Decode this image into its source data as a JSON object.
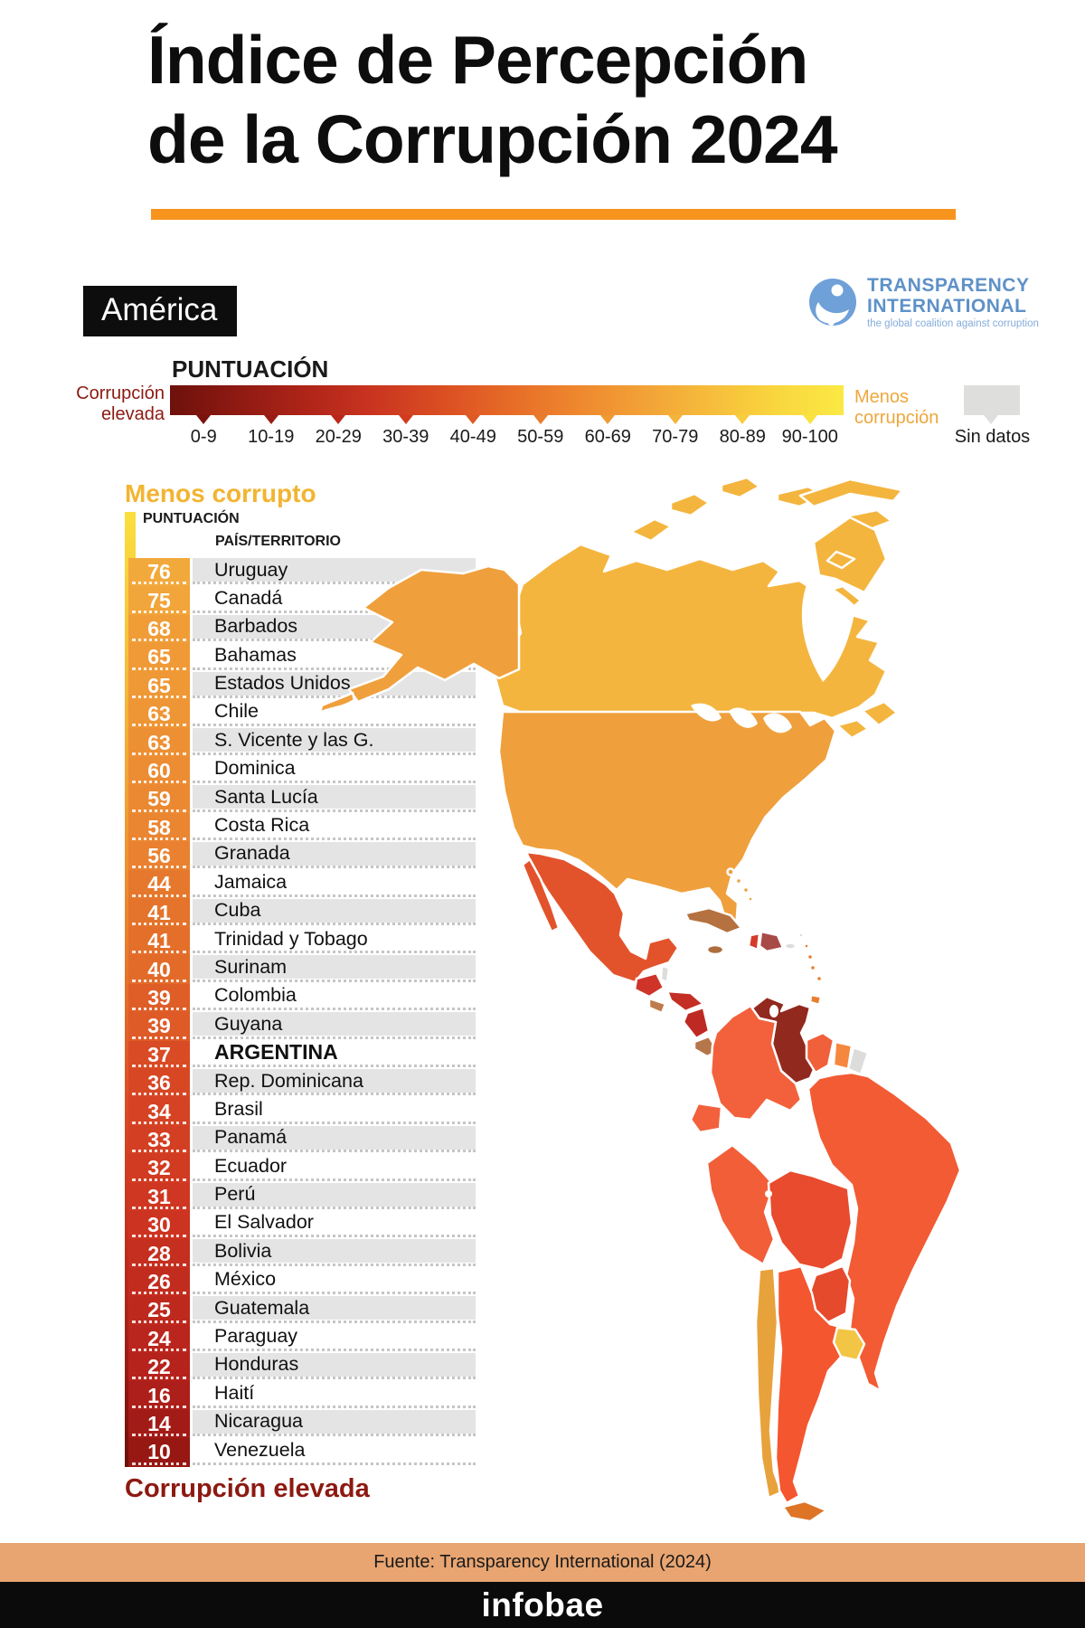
{
  "title": {
    "line1": "Índice de Percepción",
    "line2": "de la Corrupción 2024"
  },
  "region_label": "América",
  "logo": {
    "name_line1": "TRANSPARENCY",
    "name_line2": "INTERNATIONAL",
    "tagline": "the global coalition against corruption",
    "color": "#5E91C8"
  },
  "legend": {
    "title": "PUNTUACIÓN",
    "left_label_line1": "Corrupción",
    "left_label_line2": "elevada",
    "right_label_line1": "Menos",
    "right_label_line2": "corrupción",
    "no_data_label": "Sin datos",
    "buckets": [
      "0-9",
      "10-19",
      "20-29",
      "30-39",
      "40-49",
      "50-59",
      "60-69",
      "70-79",
      "80-89",
      "90-100"
    ],
    "tick_colors": [
      "#7A130E",
      "#9A1B13",
      "#BA2719",
      "#D23B1E",
      "#DE5A23",
      "#E87C2B",
      "#EF9A33",
      "#F3B43A",
      "#F7CC3D",
      "#FAE23F"
    ]
  },
  "ranking": {
    "heading": "Menos corrupto",
    "col_score": "PUNTUACIÓN",
    "col_country": "PAÍS/TERRITORIO",
    "bottom_label": "Corrupción elevada",
    "rows": [
      {
        "score": "76",
        "country": "Uruguay",
        "color": "#F2A93C"
      },
      {
        "score": "75",
        "country": "Canadá",
        "color": "#F1A53A"
      },
      {
        "score": "68",
        "country": "Barbados",
        "color": "#F09D38"
      },
      {
        "score": "65",
        "country": "Bahamas",
        "color": "#F09A37"
      },
      {
        "score": "65",
        "country": "Estados Unidos",
        "color": "#EF9836"
      },
      {
        "score": "63",
        "country": "Chile",
        "color": "#EE9535"
      },
      {
        "score": "63",
        "country": "S. Vicente y las G.",
        "color": "#ED9034"
      },
      {
        "score": "60",
        "country": "Dominica",
        "color": "#EC8C33"
      },
      {
        "score": "59",
        "country": "Santa Lucía",
        "color": "#EB8932"
      },
      {
        "score": "58",
        "country": "Costa Rica",
        "color": "#EA8531"
      },
      {
        "score": "56",
        "country": "Granada",
        "color": "#E98130"
      },
      {
        "score": "44",
        "country": "Jamaica",
        "color": "#E5782D"
      },
      {
        "score": "41",
        "country": "Cuba",
        "color": "#E4732C"
      },
      {
        "score": "41",
        "country": "Trinidad y Tobago",
        "color": "#E36F2B"
      },
      {
        "score": "40",
        "country": "Surinam",
        "color": "#E26B2A"
      },
      {
        "score": "39",
        "country": "Colombia",
        "color": "#DF5E28"
      },
      {
        "score": "39",
        "country": "Guyana",
        "color": "#DE5A27"
      },
      {
        "score": "37",
        "country": "ARGENTINA",
        "color": "#D94B25",
        "bold": true
      },
      {
        "score": "36",
        "country": "Rep. Dominicana",
        "color": "#D74724"
      },
      {
        "score": "34",
        "country": "Brasil",
        "color": "#D54324"
      },
      {
        "score": "33",
        "country": "Panamá",
        "color": "#D33F23"
      },
      {
        "score": "32",
        "country": "Ecuador",
        "color": "#D13B22"
      },
      {
        "score": "31",
        "country": "Perú",
        "color": "#CF3722"
      },
      {
        "score": "30",
        "country": "El Salvador",
        "color": "#CD3321"
      },
      {
        "score": "28",
        "country": "Bolivia",
        "color": "#C52F20"
      },
      {
        "score": "26",
        "country": "México",
        "color": "#C22C1F"
      },
      {
        "score": "25",
        "country": "Guatemala",
        "color": "#BE291E"
      },
      {
        "score": "24",
        "country": "Paraguay",
        "color": "#BA261D"
      },
      {
        "score": "22",
        "country": "Honduras",
        "color": "#B6231C"
      },
      {
        "score": "16",
        "country": "Haití",
        "color": "#AC1F1A"
      },
      {
        "score": "14",
        "country": "Nicaragua",
        "color": "#A31B17"
      },
      {
        "score": "10",
        "country": "Venezuela",
        "color": "#971713"
      }
    ]
  },
  "map": {
    "colors": {
      "canada": "#F4B53E",
      "usa": "#EFA03C",
      "mexico": "#E2532C",
      "guatemala": "#CE3528",
      "belize": "#DCDCDA",
      "honduras": "#C52E24",
      "el_salvador": "#BE7B4B",
      "nicaragua": "#BE2A23",
      "costa_rica": "#B5764A",
      "panama": "#BA7448",
      "cuba": "#B5713F",
      "jamaica": "#AD6D3D",
      "haiti": "#D53A2A",
      "dominican_republic": "#A84B48",
      "no_data_gray": "#DCDCDA",
      "bahamas": "#EFA03C",
      "lesser_antilles": "#E87E2F",
      "trinidad_tobago": "#E87E2F",
      "venezuela": "#92291E",
      "colombia": "#F2613B",
      "ecuador": "#F2613B",
      "peru": "#F15E38",
      "brazil": "#F25B33",
      "bolivia": "#E84B2D",
      "paraguay": "#E64A2C",
      "chile": "#E8A23C",
      "argentina": "#F4562F",
      "uruguay": "#F2C544",
      "guyana": "#F0603A",
      "suriname": "#F6873E",
      "french_guiana": "#DCDCDA",
      "tierra_del_fuego": "#DD7426"
    }
  },
  "footer": {
    "source": "Fuente: Transparency International (2024)",
    "brand": "infobae",
    "band_color": "#E8A571"
  },
  "chart_data": {
    "type": "table",
    "title": "Índice de Percepción de la Corrupción 2024 – América",
    "categories": [
      "Uruguay",
      "Canadá",
      "Barbados",
      "Bahamas",
      "Estados Unidos",
      "Chile",
      "S. Vicente y las G.",
      "Dominica",
      "Santa Lucía",
      "Costa Rica",
      "Granada",
      "Jamaica",
      "Cuba",
      "Trinidad y Tobago",
      "Surinam",
      "Colombia",
      "Guyana",
      "ARGENTINA",
      "Rep. Dominicana",
      "Brasil",
      "Panamá",
      "Ecuador",
      "Perú",
      "El Salvador",
      "Bolivia",
      "México",
      "Guatemala",
      "Paraguay",
      "Honduras",
      "Haití",
      "Nicaragua",
      "Venezuela"
    ],
    "values": [
      76,
      75,
      68,
      65,
      65,
      63,
      63,
      60,
      59,
      58,
      56,
      44,
      41,
      41,
      40,
      39,
      39,
      37,
      36,
      34,
      33,
      32,
      31,
      30,
      28,
      26,
      25,
      24,
      22,
      16,
      14,
      10
    ],
    "legend_buckets": [
      "0-9",
      "10-19",
      "20-29",
      "30-39",
      "40-49",
      "50-59",
      "60-69",
      "70-79",
      "80-89",
      "90-100"
    ],
    "scale_low_label": "Corrupción elevada",
    "scale_high_label": "Menos corrupción",
    "no_data_label": "Sin datos"
  }
}
